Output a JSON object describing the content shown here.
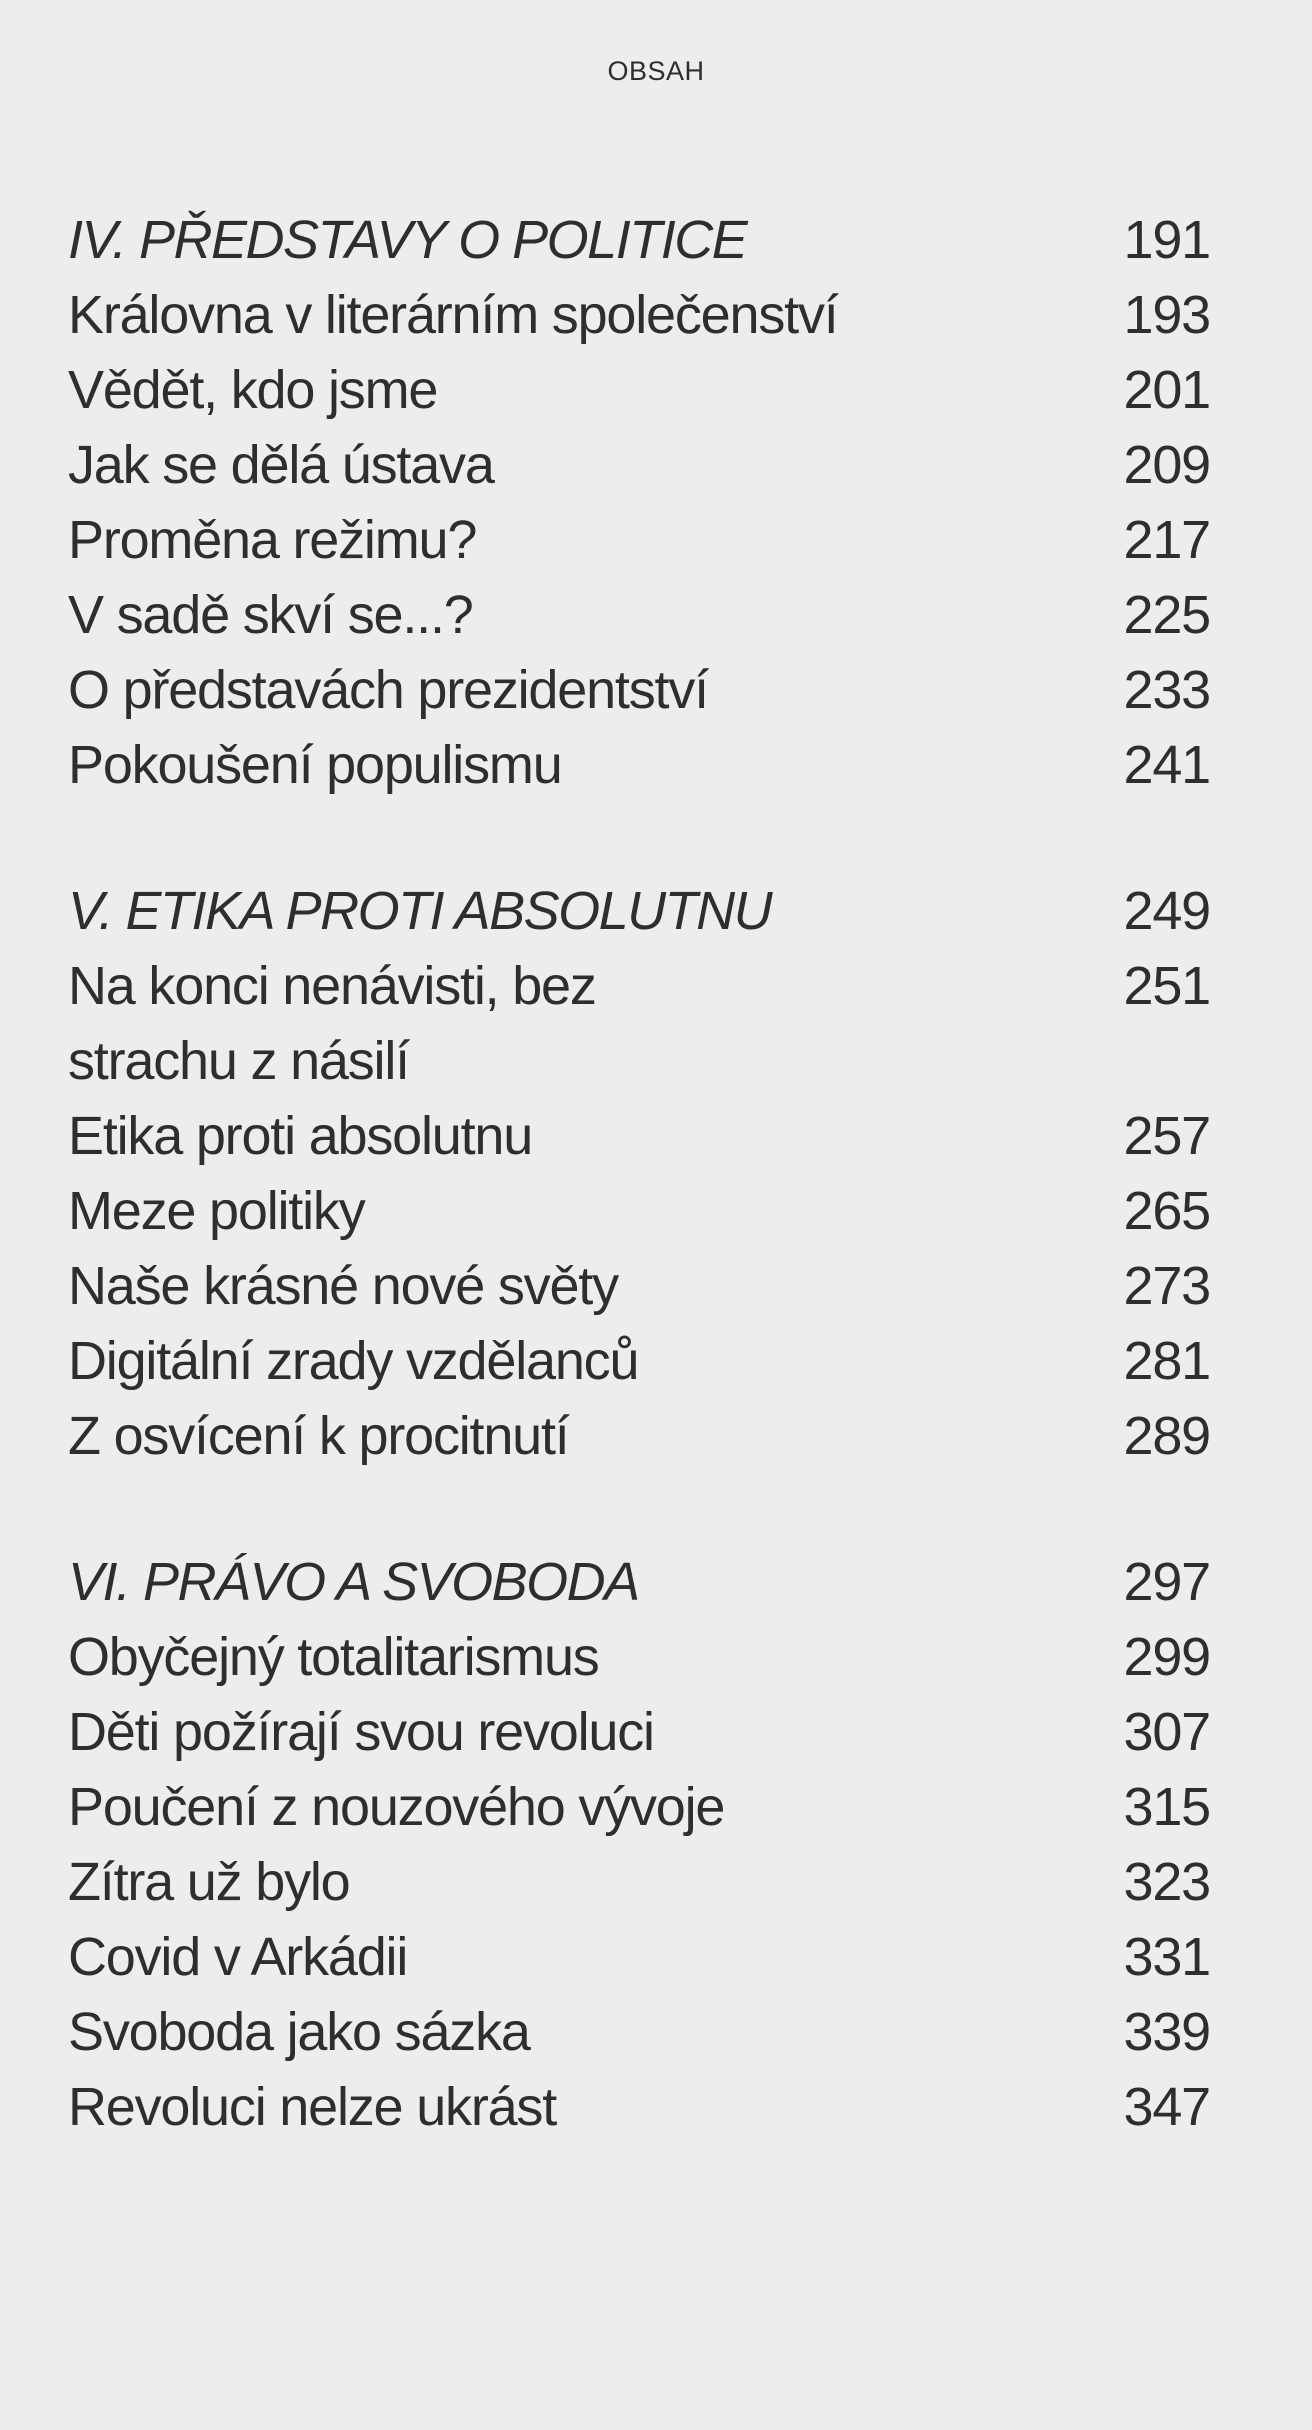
{
  "header": {
    "title": "OBSAH"
  },
  "sections": [
    {
      "heading": {
        "title": "IV. PŘEDSTAVY O POLITICE",
        "page": "191"
      },
      "entries": [
        {
          "title": "Královna v literárním společenství",
          "page": "193"
        },
        {
          "title": "Vědět, kdo jsme",
          "page": "201"
        },
        {
          "title": "Jak se dělá ústava",
          "page": "209"
        },
        {
          "title": "Proměna režimu?",
          "page": "217"
        },
        {
          "title": "V sadě skví se...?",
          "page": "225"
        },
        {
          "title": "O představách prezidentství",
          "page": "233"
        },
        {
          "title": "Pokoušení populismu",
          "page": "241"
        }
      ]
    },
    {
      "heading": {
        "title": "V. ETIKA PROTI ABSOLUTNU",
        "page": "249"
      },
      "entries": [
        {
          "title": "Na konci nenávisti, bez strachu z násilí",
          "page": "251"
        },
        {
          "title": "Etika proti absolutnu",
          "page": "257"
        },
        {
          "title": "Meze politiky",
          "page": "265"
        },
        {
          "title": "Naše krásné nové světy",
          "page": "273"
        },
        {
          "title": "Digitální zrady vzdělanců",
          "page": "281"
        },
        {
          "title": "Z osvícení k procitnutí",
          "page": "289"
        }
      ]
    },
    {
      "heading": {
        "title": "VI. PRÁVO A SVOBODA",
        "page": "297"
      },
      "entries": [
        {
          "title": "Obyčejný totalitarismus",
          "page": "299"
        },
        {
          "title": "Děti požírají svou revoluci",
          "page": "307"
        },
        {
          "title": "Poučení z nouzového vývoje",
          "page": "315"
        },
        {
          "title": "Zítra už bylo",
          "page": "323"
        },
        {
          "title": "Covid v Arkádii",
          "page": "331"
        },
        {
          "title": "Svoboda jako sázka",
          "page": "339"
        },
        {
          "title": "Revoluci nelze ukrást",
          "page": "347"
        }
      ]
    }
  ]
}
